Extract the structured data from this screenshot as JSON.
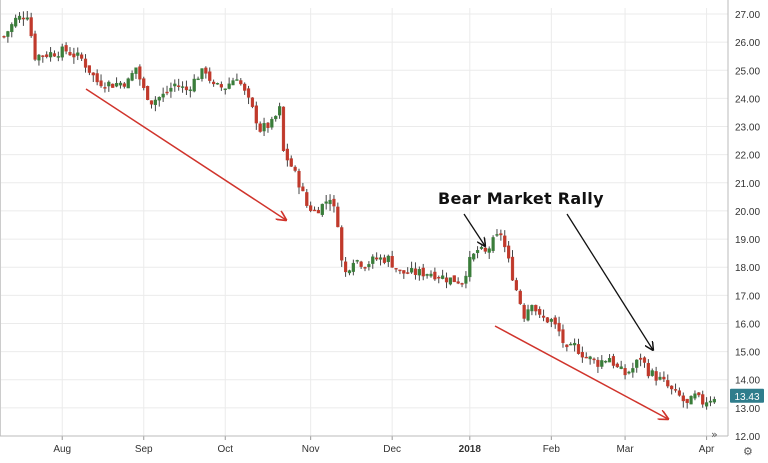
{
  "chart_data": {
    "type": "candlestick",
    "title": "",
    "xlabel": "",
    "ylabel": "",
    "ylim": [
      12.0,
      27.0
    ],
    "y_ticks": [
      "27.00",
      "26.00",
      "25.00",
      "24.00",
      "23.00",
      "22.00",
      "21.00",
      "20.00",
      "19.00",
      "18.00",
      "17.00",
      "16.00",
      "15.00",
      "14.00",
      "13.00",
      "12.00"
    ],
    "x_ticks": [
      {
        "label": "Aug",
        "bold": false,
        "index": 15
      },
      {
        "label": "Sep",
        "bold": false,
        "index": 36
      },
      {
        "label": "Oct",
        "bold": false,
        "index": 57
      },
      {
        "label": "Nov",
        "bold": false,
        "index": 79
      },
      {
        "label": "Dec",
        "bold": false,
        "index": 100
      },
      {
        "label": "2018",
        "bold": true,
        "index": 120
      },
      {
        "label": "Feb",
        "bold": false,
        "index": 141
      },
      {
        "label": "Mar",
        "bold": false,
        "index": 160
      },
      {
        "label": "Apr",
        "bold": false,
        "index": 181
      }
    ],
    "grid": true,
    "legend": "none",
    "colors": {
      "up": "#3a7d3a",
      "down": "#c0392b",
      "arrow_red": "#d0342c",
      "arrow_black": "#111111",
      "price_tag": "#2f7d8c",
      "grid": "#ebebeb"
    },
    "current_price": "13.43",
    "current_price_value": 13.43,
    "close_path": [
      [
        0,
        26.2
      ],
      [
        3,
        26.8
      ],
      [
        6,
        27.0
      ],
      [
        8,
        25.5
      ],
      [
        12,
        25.6
      ],
      [
        16,
        25.7
      ],
      [
        20,
        25.4
      ],
      [
        24,
        24.6
      ],
      [
        28,
        24.5
      ],
      [
        32,
        24.6
      ],
      [
        34,
        25.1
      ],
      [
        36,
        24.3
      ],
      [
        38,
        23.9
      ],
      [
        41,
        24.1
      ],
      [
        44,
        24.5
      ],
      [
        47,
        24.3
      ],
      [
        50,
        24.8
      ],
      [
        52,
        25.0
      ],
      [
        54,
        24.4
      ],
      [
        57,
        24.4
      ],
      [
        60,
        24.8
      ],
      [
        62,
        24.2
      ],
      [
        64,
        23.6
      ],
      [
        66,
        22.9
      ],
      [
        69,
        23.1
      ],
      [
        71,
        23.6
      ],
      [
        72,
        22.1
      ],
      [
        74,
        21.6
      ],
      [
        76,
        21.0
      ],
      [
        78,
        20.2
      ],
      [
        80,
        20.0
      ],
      [
        82,
        20.2
      ],
      [
        84,
        20.5
      ],
      [
        86,
        19.6
      ],
      [
        87,
        18.2
      ],
      [
        88,
        17.8
      ],
      [
        90,
        18.3
      ],
      [
        93,
        18.1
      ],
      [
        96,
        18.3
      ],
      [
        99,
        18.3
      ],
      [
        102,
        17.8
      ],
      [
        106,
        17.8
      ],
      [
        110,
        17.8
      ],
      [
        114,
        17.6
      ],
      [
        118,
        17.5
      ],
      [
        120,
        18.2
      ],
      [
        122,
        18.6
      ],
      [
        124,
        18.5
      ],
      [
        126,
        18.9
      ],
      [
        128,
        19.2
      ],
      [
        130,
        18.2
      ],
      [
        132,
        17.2
      ],
      [
        134,
        16.3
      ],
      [
        136,
        16.8
      ],
      [
        138,
        16.2
      ],
      [
        141,
        16.1
      ],
      [
        143,
        15.7
      ],
      [
        145,
        15.0
      ],
      [
        147,
        15.2
      ],
      [
        150,
        14.8
      ],
      [
        153,
        14.6
      ],
      [
        156,
        14.8
      ],
      [
        158,
        14.4
      ],
      [
        160,
        14.2
      ],
      [
        162,
        14.4
      ],
      [
        164,
        14.8
      ],
      [
        166,
        14.3
      ],
      [
        168,
        14.1
      ],
      [
        170,
        13.9
      ],
      [
        172,
        13.6
      ],
      [
        174,
        13.4
      ],
      [
        176,
        13.1
      ],
      [
        178,
        13.4
      ],
      [
        180,
        13.2
      ],
      [
        183,
        13.4
      ]
    ],
    "annotations": [
      {
        "text": "Bear Market Rally"
      }
    ]
  },
  "icons": {
    "scroll": "»",
    "settings": "⚙"
  }
}
